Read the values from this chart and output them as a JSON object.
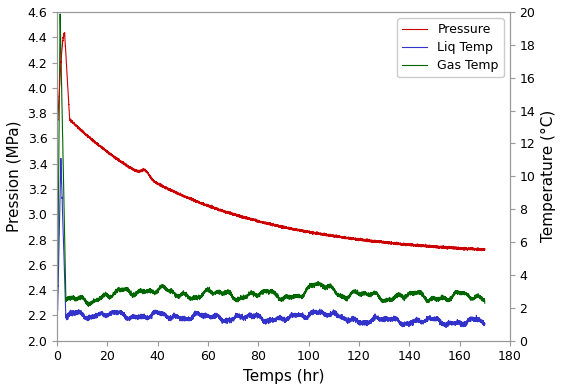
{
  "title": "",
  "xlabel": "Temps (hr)",
  "ylabel_left": "Pression (MPa)",
  "ylabel_right": "Temperature (°C)",
  "xlim": [
    0,
    180
  ],
  "ylim_left": [
    2.0,
    4.6
  ],
  "ylim_right": [
    0,
    20
  ],
  "xticks": [
    0,
    20,
    40,
    60,
    80,
    100,
    120,
    140,
    160,
    180
  ],
  "yticks_left": [
    2.0,
    2.2,
    2.4,
    2.6,
    2.8,
    3.0,
    3.2,
    3.4,
    3.6,
    3.8,
    4.0,
    4.2,
    4.4,
    4.6
  ],
  "yticks_right": [
    0,
    2,
    4,
    6,
    8,
    10,
    12,
    14,
    16,
    18,
    20
  ],
  "pressure_color": "#cc0000",
  "liq_temp_color": "#3333cc",
  "gas_temp_color": "#006600",
  "legend_labels": [
    "Pressure",
    "Liq Temp",
    "Gas Temp"
  ],
  "linewidth": 0.8,
  "background_color": "#ffffff",
  "figsize": [
    5.63,
    3.91
  ],
  "dpi": 100
}
